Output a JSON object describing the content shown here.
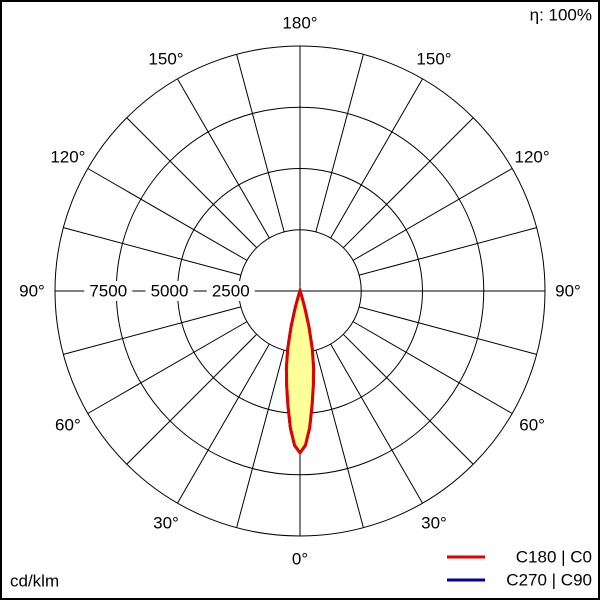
{
  "chart_data": {
    "type": "polar",
    "annotation": "η: 100%",
    "y_label": "cd/klm",
    "ylim": [
      0,
      10000
    ],
    "yticks": [
      2500,
      5000,
      7500
    ],
    "xticks": [
      {
        "value": 0,
        "label": "0°"
      },
      {
        "value": 30,
        "label": "30°"
      },
      {
        "value": 60,
        "label": "60°"
      },
      {
        "value": 90,
        "label": "90°"
      },
      {
        "value": 120,
        "label": "120°"
      },
      {
        "value": 150,
        "label": "150°"
      },
      {
        "value": 180,
        "label": "180°"
      }
    ],
    "x": [
      -20,
      -18,
      -16,
      -14,
      -12,
      -10,
      -8,
      -6,
      -4,
      -2,
      0,
      2,
      4,
      6,
      8,
      10,
      12,
      14,
      16,
      18,
      20
    ],
    "series": [
      {
        "name": "C270 | C90",
        "color": "#0000a0",
        "values": [
          0,
          200,
          700,
          1500,
          2400,
          3200,
          3900,
          4700,
          5600,
          6300,
          6600,
          6300,
          5600,
          4700,
          3900,
          3200,
          2400,
          1500,
          700,
          200,
          0
        ]
      },
      {
        "name": "C180 | C0",
        "color": "#e00000",
        "fill": "#ffff99",
        "values": [
          0,
          200,
          700,
          1500,
          2400,
          3200,
          3900,
          4700,
          5600,
          6300,
          6600,
          6300,
          5600,
          4700,
          3900,
          3200,
          2400,
          1500,
          700,
          200,
          0
        ]
      }
    ]
  }
}
